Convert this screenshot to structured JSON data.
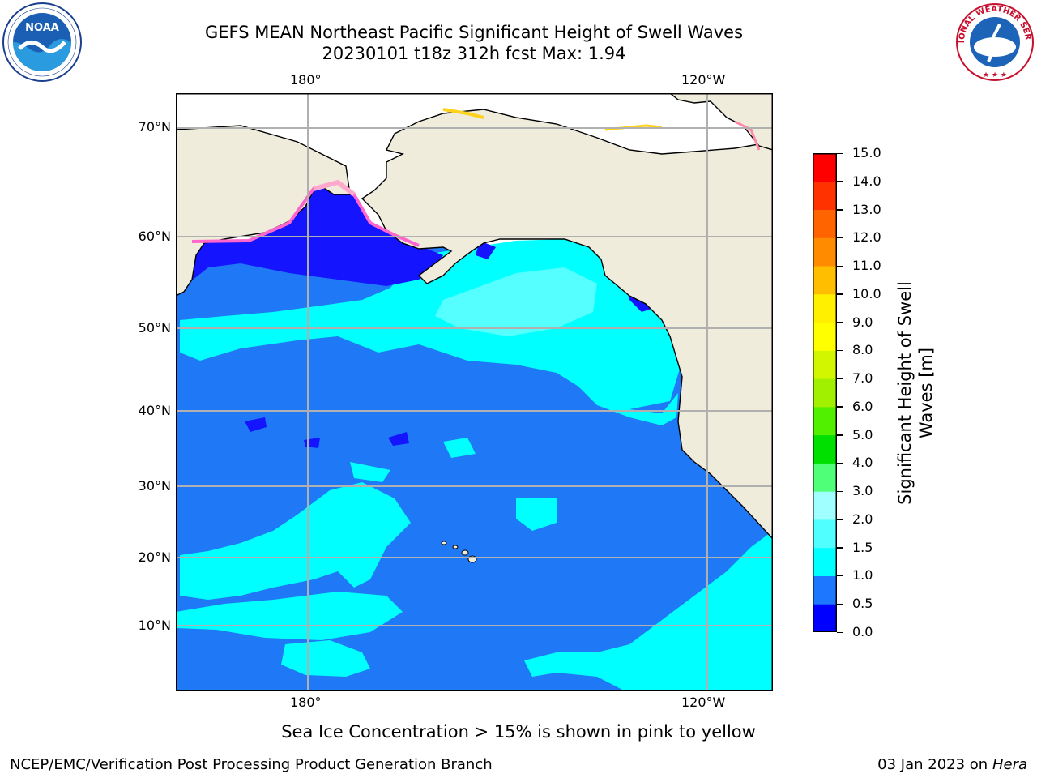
{
  "title": {
    "line1": "GEFS MEAN Northeast Pacific Significant Height of Swell Waves",
    "line2": "20230101 t18z 312h fcst   Max: 1.94"
  },
  "logos": {
    "left": {
      "icon": "noaa-logo",
      "text": "NOAA"
    },
    "right": {
      "icon": "nws-logo",
      "text": "NATIONAL WEATHER SERVICE"
    }
  },
  "map": {
    "lon_labels": [
      "180°",
      "120°W"
    ],
    "lat_labels": [
      "70°N",
      "60°N",
      "50°N",
      "40°N",
      "30°N",
      "20°N",
      "10°N"
    ],
    "colors": {
      "land": "#efecdc",
      "ocean_0_5_1_0": "#1f78f5",
      "ocean_1_0_1_5": "#00ffff",
      "ocean_1_5_2_0": "#55ffff",
      "ocean_0_0_0_5": "#1414ff",
      "ice_pink": "#ff66cc",
      "ice_yellow": "#ffd21f",
      "grid": "#b0b0b0"
    }
  },
  "colorbar": {
    "title": "Significant Height of Swell Waves [m]",
    "title_line1": "Significant Height of Swell",
    "title_line2": "Waves [m]",
    "ticks": [
      "0.0",
      "0.5",
      "1.0",
      "1.5",
      "2.0",
      "3.0",
      "4.0",
      "5.0",
      "6.0",
      "7.0",
      "8.0",
      "9.0",
      "10.0",
      "11.0",
      "12.0",
      "13.0",
      "14.0",
      "15.0"
    ],
    "colors": [
      "#0000ff",
      "#1e78ff",
      "#00ffff",
      "#50ffff",
      "#a0ffff",
      "#50ff78",
      "#00e000",
      "#50f000",
      "#a0f000",
      "#d2f500",
      "#ffff00",
      "#fff000",
      "#ffbe00",
      "#ff8c00",
      "#ff6400",
      "#ff3200",
      "#ff0000"
    ]
  },
  "note": "Sea Ice Concentration > 15% is shown in pink to yellow",
  "footer": {
    "left": "NCEP/EMC/Verification Post Processing Product Generation Branch",
    "right_date": "03 Jan 2023 on ",
    "right_host": "Hera"
  }
}
